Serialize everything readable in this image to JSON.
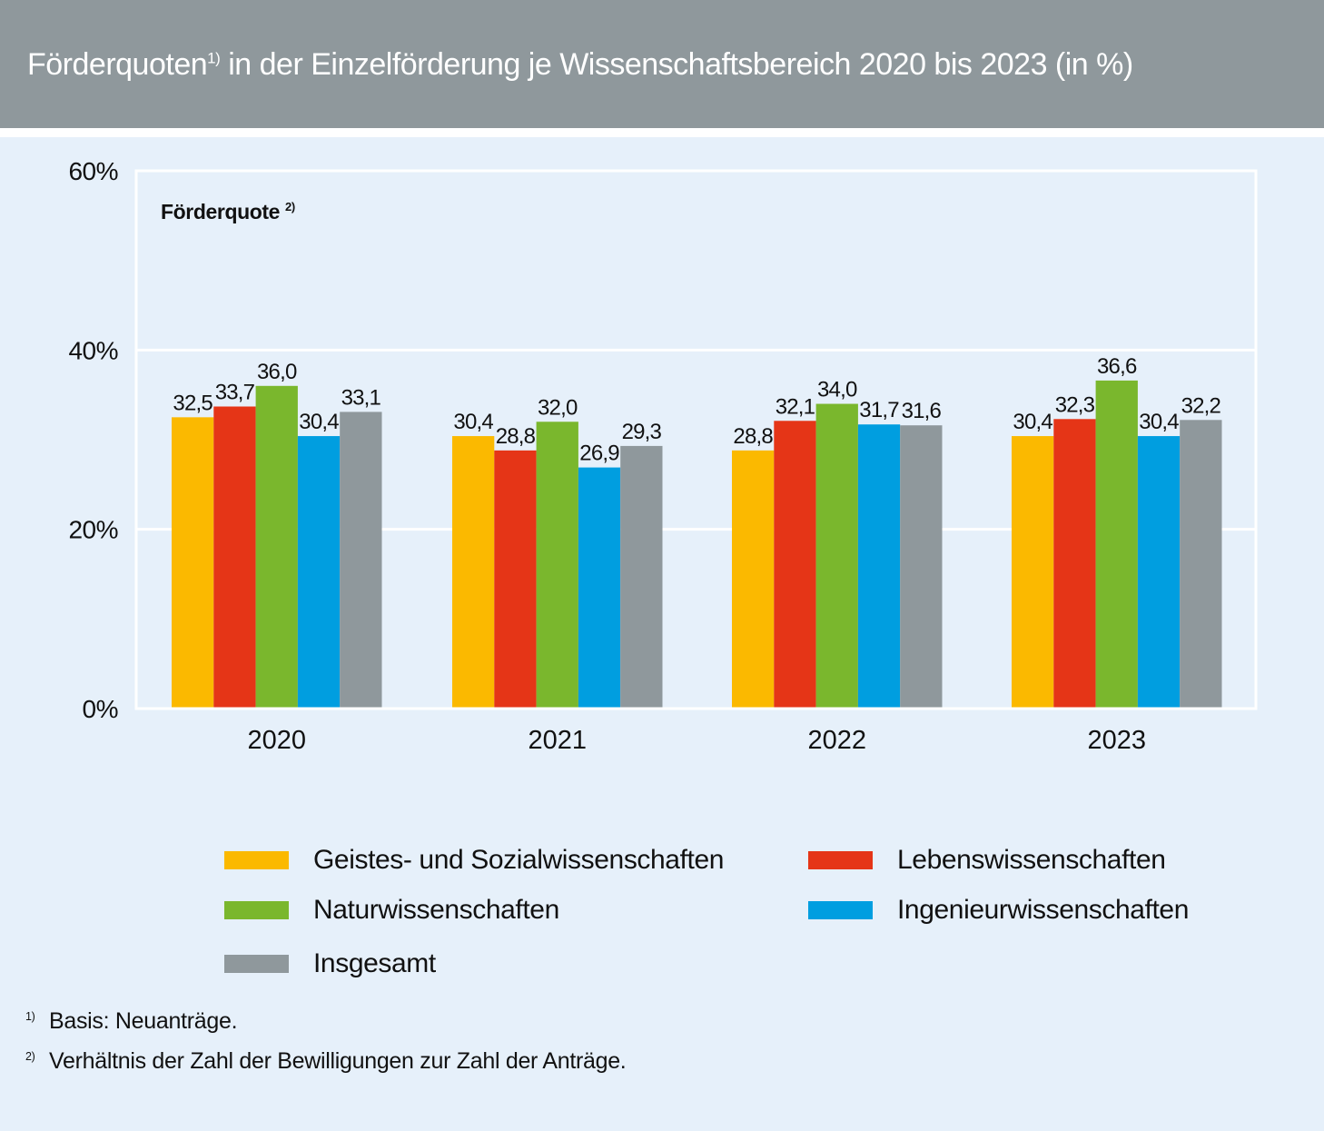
{
  "header": {
    "title_part1": "Förderquoten",
    "title_sup": "1)",
    "title_part2": "in der Einzelförderung je Wissenschaftsbereich 2020 bis 2023 (in %)"
  },
  "chart_data": {
    "type": "bar",
    "title": "Förderquoten 1) in der Einzelförderung je Wissenschaftsbereich 2020 bis 2023 (in %)",
    "ylabel": "Förderquote 2)",
    "ylabel_text": "Förderquote",
    "ylabel_sup": "2)",
    "xlabel": "",
    "ylim": [
      0,
      60
    ],
    "yticks": [
      0,
      20,
      40,
      60
    ],
    "ytick_labels": [
      "0%",
      "20%",
      "40%",
      "60%"
    ],
    "grid": true,
    "legend_position": "bottom",
    "categories": [
      "2020",
      "2021",
      "2022",
      "2023"
    ],
    "series": [
      {
        "name": "Geistes- und Sozialwissenschaften",
        "color": "#fbb900",
        "values": [
          32.5,
          30.4,
          28.8,
          30.4
        ],
        "labels": [
          "32,5",
          "30,4",
          "28,8",
          "30,4"
        ]
      },
      {
        "name": "Lebenswissenschaften",
        "color": "#e53517",
        "values": [
          33.7,
          28.8,
          32.1,
          32.3
        ],
        "labels": [
          "33,7",
          "28,8",
          "32,1",
          "32,3"
        ]
      },
      {
        "name": "Naturwissenschaften",
        "color": "#7ab72d",
        "values": [
          36.0,
          32.0,
          34.0,
          36.6
        ],
        "labels": [
          "36,0",
          "32,0",
          "34,0",
          "36,6"
        ]
      },
      {
        "name": "Ingenieurwissenschaften",
        "color": "#009ee0",
        "values": [
          30.4,
          26.9,
          31.7,
          30.4
        ],
        "labels": [
          "30,4",
          "26,9",
          "31,7",
          "30,4"
        ]
      },
      {
        "name": "Insgesamt",
        "color": "#8f989c",
        "values": [
          33.1,
          29.3,
          31.6,
          32.2
        ],
        "labels": [
          "33,1",
          "29,3",
          "31,6",
          "32,2"
        ]
      }
    ]
  },
  "footnotes": [
    {
      "num": "1)",
      "text": "Basis: Neuanträge."
    },
    {
      "num": "2)",
      "text": "Verhältnis der Zahl der Bewilligungen zur Zahl der Anträge."
    }
  ]
}
